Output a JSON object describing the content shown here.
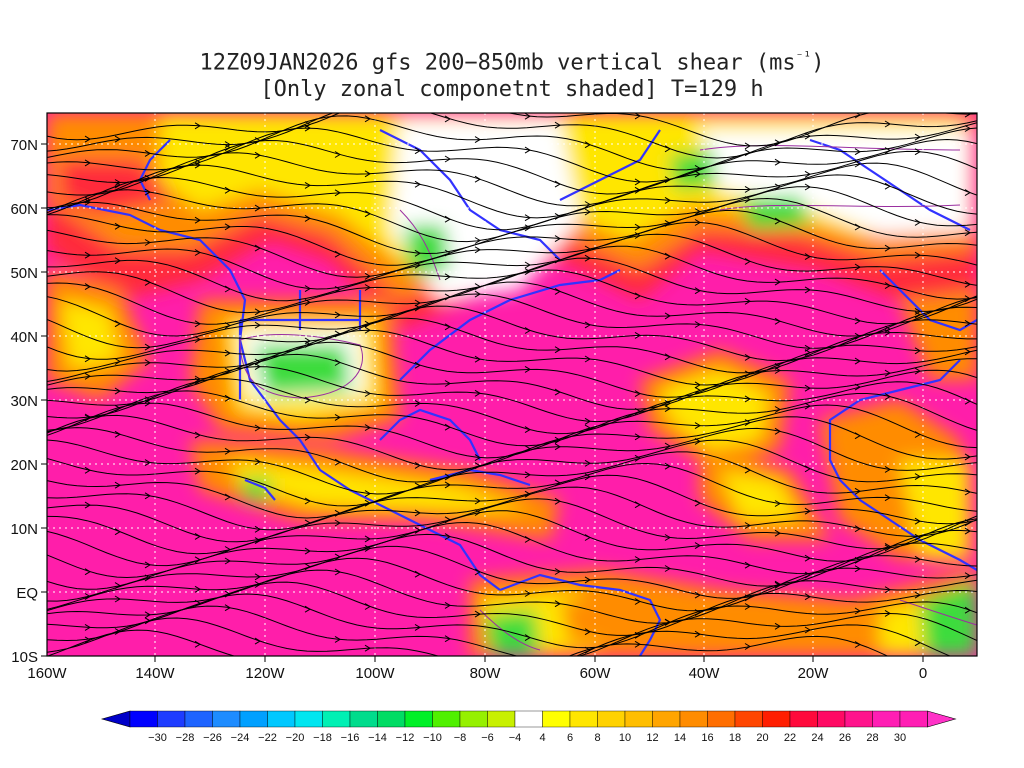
{
  "title": {
    "line1_main": "12Z09JAN2026 gfs 200−850mb vertical shear (ms",
    "line1_sup": "⁻¹",
    "line1_end": ")",
    "line2": "[Only zonal componetnt shaded] T=129 h"
  },
  "lat_labels": [
    "70N",
    "60N",
    "50N",
    "40N",
    "30N",
    "20N",
    "10N",
    "EQ",
    "10S"
  ],
  "lon_labels": [
    "160W",
    "140W",
    "120W",
    "100W",
    "80W",
    "60W",
    "40W",
    "20W",
    "0"
  ],
  "colorbar": {
    "labels": [
      "−30",
      "−28",
      "−26",
      "−24",
      "−22",
      "−20",
      "−18",
      "−16",
      "−14",
      "−12",
      "−10",
      "−8",
      "−6",
      "−4",
      "4",
      "6",
      "8",
      "10",
      "12",
      "14",
      "16",
      "18",
      "20",
      "22",
      "24",
      "26",
      "28",
      "30"
    ],
    "colors": [
      "#0000ff",
      "#1e3cff",
      "#1e64ff",
      "#1e8cff",
      "#00a0ff",
      "#00c8ff",
      "#00e6f0",
      "#00f0b4",
      "#00dc8c",
      "#00dc64",
      "#00f028",
      "#50f000",
      "#96f000",
      "#c8f000",
      "#ffffff",
      "#ffff00",
      "#ffe600",
      "#ffd200",
      "#ffbe00",
      "#ffa500",
      "#ff8c00",
      "#ff6e00",
      "#ff4600",
      "#ff1e00",
      "#ff0a3c",
      "#ff0a64",
      "#ff148c",
      "#ff1eb4",
      "#ff1eb4"
    ],
    "left_arrow_color": "#0000c8",
    "right_arrow_color": "#ff32c8"
  },
  "palette": {
    "magenta": "#ff1eaa",
    "red": "#ff2a3a",
    "orange": "#ff8c00",
    "yellow": "#ffe600",
    "white": "#ffffff",
    "green": "#3cdc3c",
    "coast": "#3232ff",
    "contour": "#9b2fa0",
    "streamline": "#000000"
  }
}
